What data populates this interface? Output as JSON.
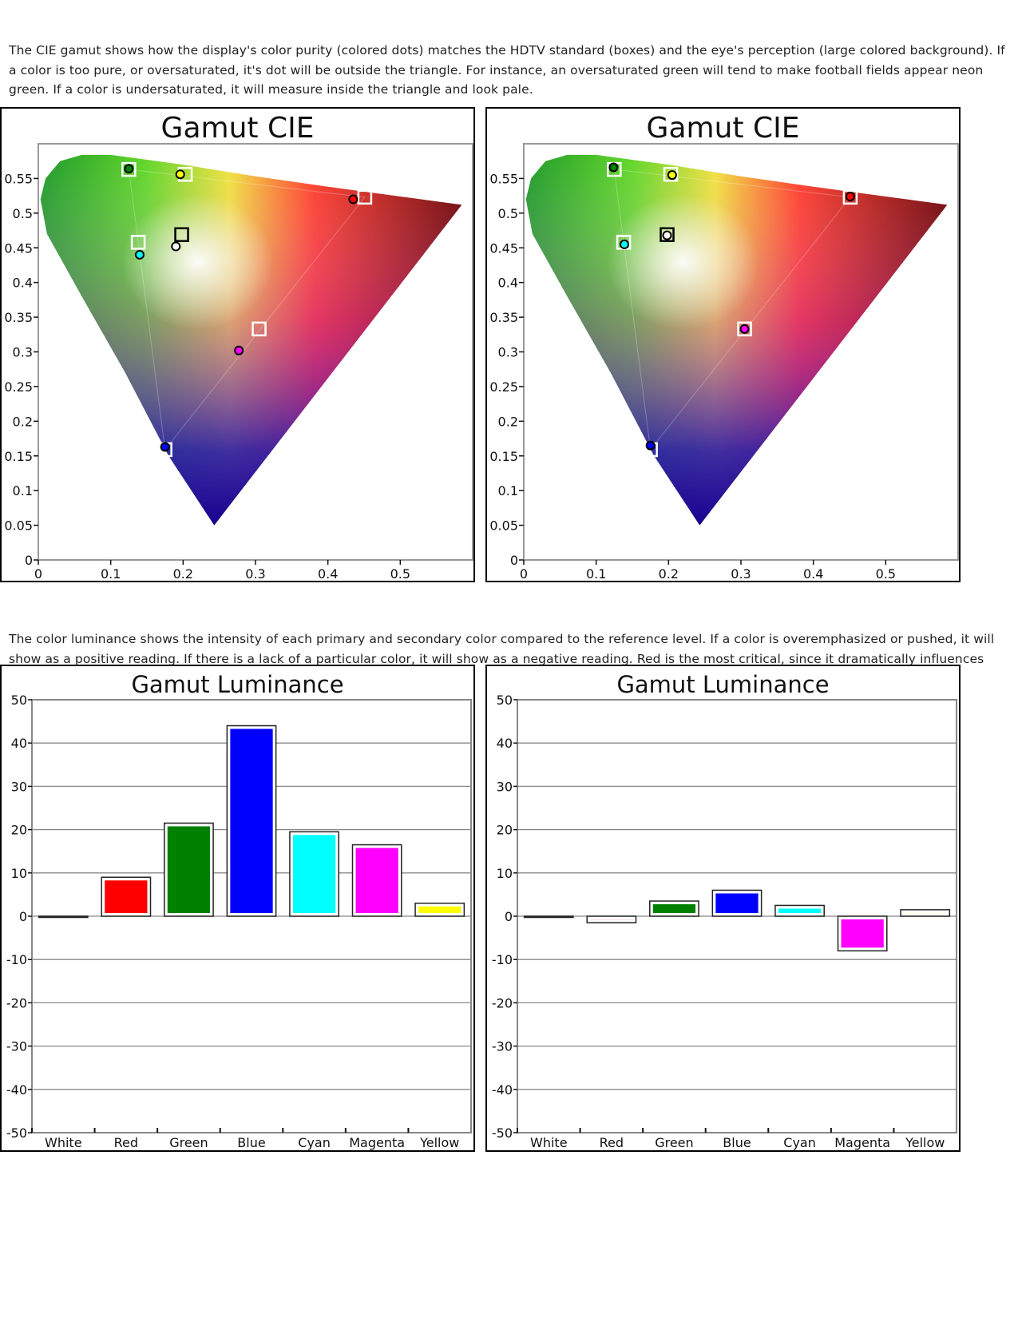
{
  "intro_text": "The CIE gamut shows how the display's color purity (colored dots) matches the HDTV standard (boxes) and the eye's perception (large colored background).  If a color is too pure, or oversaturated, it's dot will be outside the triangle.  For instance, an oversaturated green will tend to make football fields appear neon green.   If a color is undersaturated, it will measure inside the triangle and look pale.",
  "luminance_text": "The color luminance shows the intensity of each primary and secondary color compared to the reference level.  If a color is overemphasized or pushed, it will show as a positive reading.  If there is a lack of a particular color, it will show as a negative reading.  Red is the most critical, since it dramatically influences flesh tones.",
  "colors": {
    "White": "#ffffff",
    "Red": "#ff0000",
    "Green": "#008000",
    "Blue": "#0000ff",
    "Cyan": "#00ffff",
    "Magenta": "#ff00ff",
    "Yellow": "#ffff00"
  },
  "chart_data": [
    {
      "type": "scatter",
      "title": "Gamut CIE",
      "xlim": [
        0,
        0.6
      ],
      "ylim": [
        0,
        0.6
      ],
      "x_ticks": [
        "0",
        "0.1",
        "0.2",
        "0.3",
        "0.4",
        "0.5"
      ],
      "y_ticks": [
        "0",
        "0.05",
        "0.1",
        "0.15",
        "0.2",
        "0.25",
        "0.3",
        "0.35",
        "0.4",
        "0.45",
        "0.5",
        "0.55"
      ],
      "targets": [
        {
          "color": "Green",
          "x": 0.125,
          "y": 0.563
        },
        {
          "color": "Yellow",
          "x": 0.203,
          "y": 0.556
        },
        {
          "color": "Red",
          "x": 0.451,
          "y": 0.523
        },
        {
          "color": "Cyan",
          "x": 0.138,
          "y": 0.458
        },
        {
          "color": "White",
          "x": 0.198,
          "y": 0.469
        },
        {
          "color": "Magenta",
          "x": 0.305,
          "y": 0.333
        },
        {
          "color": "Blue",
          "x": 0.175,
          "y": 0.159
        }
      ],
      "measured": [
        {
          "color": "Green",
          "x": 0.125,
          "y": 0.564
        },
        {
          "color": "Yellow",
          "x": 0.196,
          "y": 0.556
        },
        {
          "color": "Red",
          "x": 0.435,
          "y": 0.52
        },
        {
          "color": "Cyan",
          "x": 0.14,
          "y": 0.44
        },
        {
          "color": "White",
          "x": 0.19,
          "y": 0.452
        },
        {
          "color": "Magenta",
          "x": 0.277,
          "y": 0.302
        },
        {
          "color": "Blue",
          "x": 0.175,
          "y": 0.163
        }
      ]
    },
    {
      "type": "scatter",
      "title": "Gamut CIE",
      "xlim": [
        0,
        0.6
      ],
      "ylim": [
        0,
        0.6
      ],
      "x_ticks": [
        "0",
        "0.1",
        "0.2",
        "0.3",
        "0.4",
        "0.5"
      ],
      "y_ticks": [
        "0",
        "0.05",
        "0.1",
        "0.15",
        "0.2",
        "0.25",
        "0.3",
        "0.35",
        "0.4",
        "0.45",
        "0.5",
        "0.55"
      ],
      "targets": [
        {
          "color": "Green",
          "x": 0.125,
          "y": 0.563
        },
        {
          "color": "Yellow",
          "x": 0.203,
          "y": 0.556
        },
        {
          "color": "Red",
          "x": 0.451,
          "y": 0.523
        },
        {
          "color": "Cyan",
          "x": 0.138,
          "y": 0.458
        },
        {
          "color": "White",
          "x": 0.198,
          "y": 0.469
        },
        {
          "color": "Magenta",
          "x": 0.305,
          "y": 0.333
        },
        {
          "color": "Blue",
          "x": 0.175,
          "y": 0.159
        }
      ],
      "measured": [
        {
          "color": "Green",
          "x": 0.124,
          "y": 0.566
        },
        {
          "color": "Yellow",
          "x": 0.205,
          "y": 0.555
        },
        {
          "color": "Red",
          "x": 0.451,
          "y": 0.524
        },
        {
          "color": "Cyan",
          "x": 0.139,
          "y": 0.455
        },
        {
          "color": "White",
          "x": 0.198,
          "y": 0.468
        },
        {
          "color": "Magenta",
          "x": 0.305,
          "y": 0.333
        },
        {
          "color": "Blue",
          "x": 0.175,
          "y": 0.165
        }
      ]
    },
    {
      "type": "bar",
      "title": "Gamut Luminance",
      "ylim": [
        -50,
        50
      ],
      "y_ticks": [
        "50",
        "40",
        "30",
        "20",
        "10",
        "0",
        "-10",
        "-20",
        "-30",
        "-40",
        "-50"
      ],
      "categories": [
        "White",
        "Red",
        "Green",
        "Blue",
        "Cyan",
        "Magenta",
        "Yellow"
      ],
      "values": [
        0,
        9,
        21.5,
        44,
        19.5,
        16.5,
        3
      ]
    },
    {
      "type": "bar",
      "title": "Gamut Luminance",
      "ylim": [
        -50,
        50
      ],
      "y_ticks": [
        "50",
        "40",
        "30",
        "20",
        "10",
        "0",
        "-10",
        "-20",
        "-30",
        "-40",
        "-50"
      ],
      "categories": [
        "White",
        "Red",
        "Green",
        "Blue",
        "Cyan",
        "Magenta",
        "Yellow"
      ],
      "values": [
        0,
        -1.5,
        3.5,
        6,
        2.5,
        -8,
        1.5
      ]
    }
  ]
}
